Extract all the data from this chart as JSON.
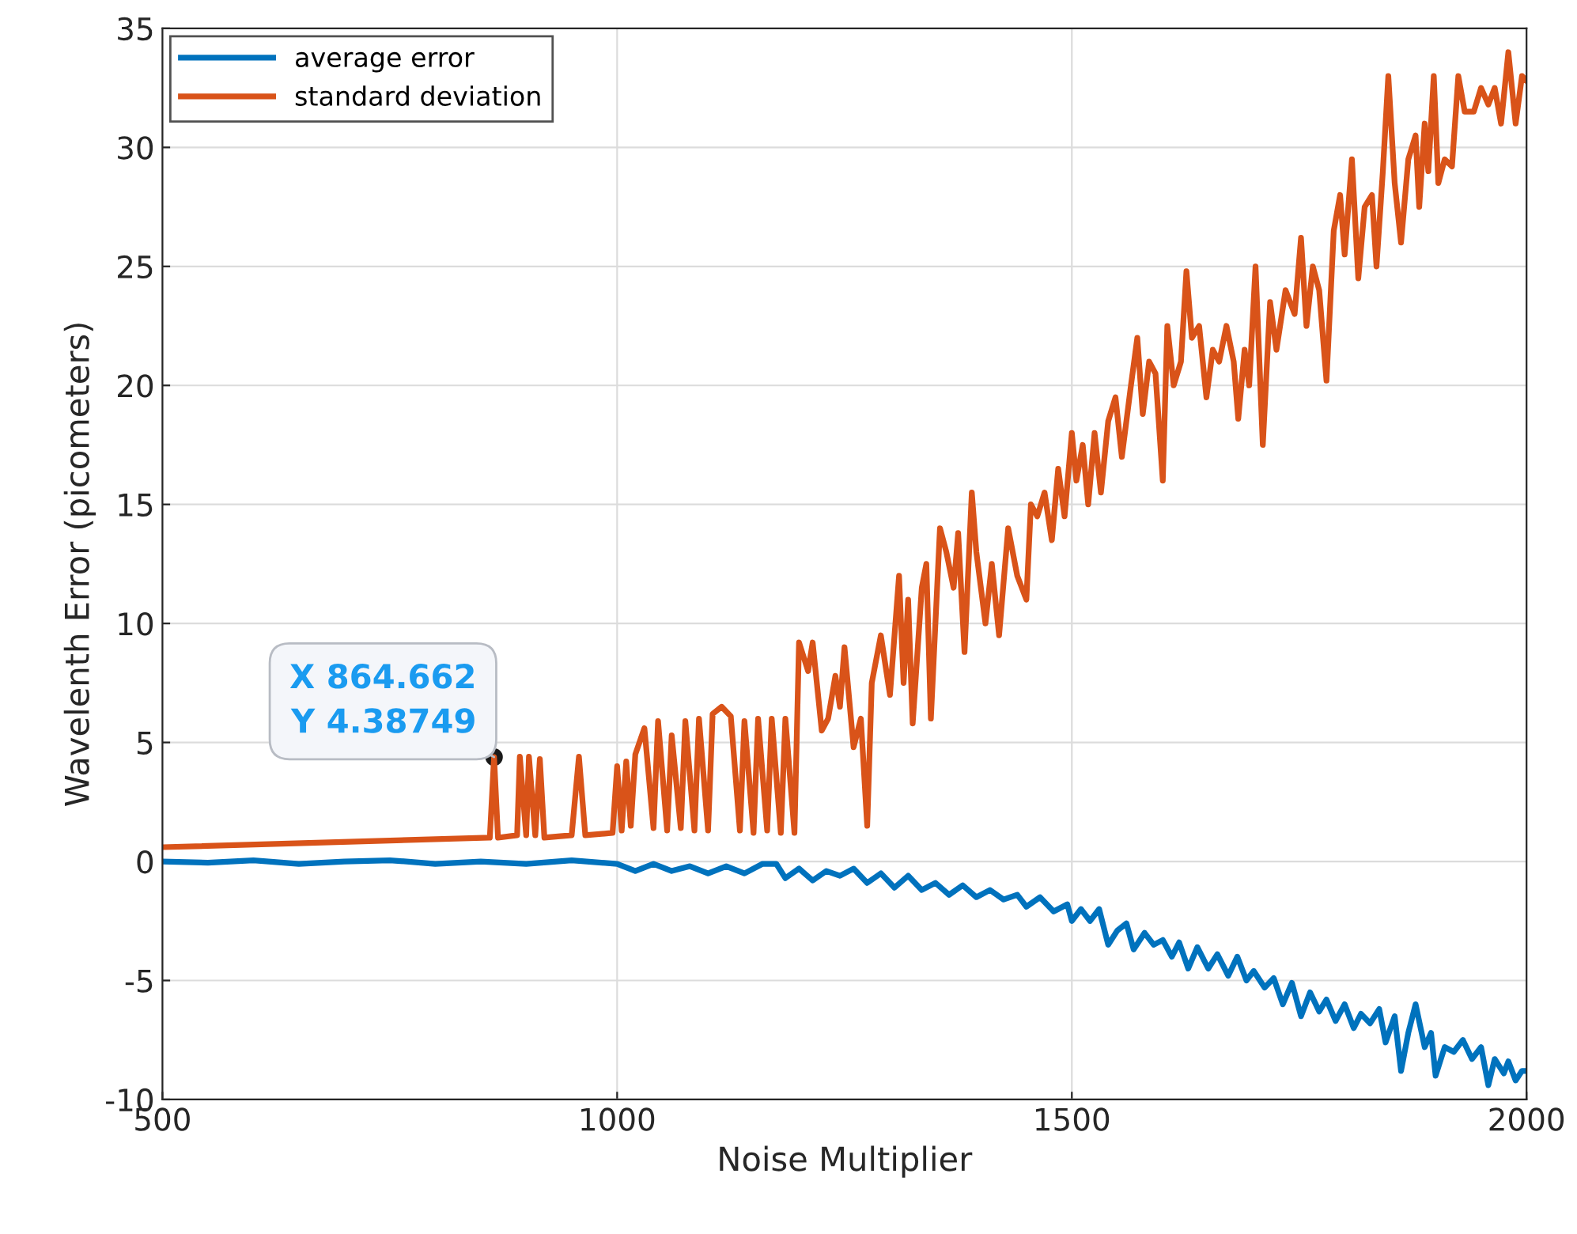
{
  "chart_data": {
    "type": "line",
    "xlabel": "Noise Multiplier",
    "ylabel": "Wavelenth Error (picometers)",
    "xlim": [
      500,
      2000
    ],
    "ylim": [
      -10,
      35
    ],
    "xticks": [
      500,
      1000,
      1500,
      2000
    ],
    "yticks": [
      -10,
      -5,
      0,
      5,
      10,
      15,
      20,
      25,
      30,
      35
    ],
    "grid": true,
    "legend": "top left",
    "line_style": "solid",
    "marker": "none",
    "annotations": [
      {
        "text": "X 864.662\nY 4.38749",
        "x": 864.662,
        "y": 4.38749
      }
    ],
    "series": [
      {
        "name": "average error",
        "color": "#0072bd",
        "x": [
          500,
          550,
          600,
          650,
          700,
          750,
          800,
          850,
          900,
          950,
          1000,
          1020,
          1040,
          1060,
          1080,
          1100,
          1120,
          1140,
          1160,
          1175,
          1185,
          1200,
          1215,
          1230,
          1245,
          1260,
          1275,
          1290,
          1305,
          1320,
          1335,
          1350,
          1365,
          1380,
          1395,
          1410,
          1425,
          1440,
          1450,
          1465,
          1480,
          1495,
          1500,
          1510,
          1520,
          1530,
          1540,
          1550,
          1560,
          1568,
          1580,
          1590,
          1600,
          1610,
          1618,
          1628,
          1638,
          1650,
          1660,
          1672,
          1682,
          1692,
          1700,
          1712,
          1722,
          1732,
          1742,
          1752,
          1762,
          1772,
          1780,
          1790,
          1800,
          1810,
          1818,
          1828,
          1838,
          1845,
          1855,
          1862,
          1870,
          1878,
          1888,
          1895,
          1900,
          1910,
          1920,
          1930,
          1940,
          1950,
          1958,
          1965,
          1975,
          1980,
          1988,
          1995,
          2000
        ],
        "values": [
          0.0,
          -0.05,
          0.05,
          -0.1,
          0.0,
          0.05,
          -0.1,
          0.0,
          -0.1,
          0.05,
          -0.1,
          -0.4,
          -0.1,
          -0.4,
          -0.2,
          -0.5,
          -0.2,
          -0.5,
          -0.1,
          -0.1,
          -0.7,
          -0.3,
          -0.8,
          -0.4,
          -0.6,
          -0.3,
          -0.9,
          -0.5,
          -1.1,
          -0.6,
          -1.2,
          -0.9,
          -1.4,
          -1.0,
          -1.5,
          -1.2,
          -1.6,
          -1.4,
          -1.9,
          -1.5,
          -2.1,
          -1.8,
          -2.5,
          -2.0,
          -2.5,
          -2.0,
          -3.5,
          -2.9,
          -2.6,
          -3.7,
          -3.0,
          -3.5,
          -3.3,
          -4.0,
          -3.4,
          -4.5,
          -3.6,
          -4.5,
          -3.9,
          -4.8,
          -4.0,
          -5.0,
          -4.6,
          -5.3,
          -4.9,
          -6.0,
          -5.1,
          -6.5,
          -5.5,
          -6.3,
          -5.8,
          -6.7,
          -6.0,
          -7.0,
          -6.4,
          -6.8,
          -6.2,
          -7.6,
          -6.5,
          -8.8,
          -7.2,
          -6.0,
          -7.8,
          -7.2,
          -9.0,
          -7.8,
          -8.0,
          -7.5,
          -8.3,
          -7.8,
          -9.4,
          -8.3,
          -8.9,
          -8.4,
          -9.2,
          -8.8,
          -8.8
        ]
      },
      {
        "name": "standard deviation",
        "color": "#d95319",
        "x": [
          500,
          860,
          864.662,
          869,
          890,
          893,
          900,
          903,
          910,
          915,
          920,
          950,
          958,
          965,
          995,
          1000,
          1005,
          1010,
          1015,
          1020,
          1030,
          1040,
          1045,
          1055,
          1060,
          1070,
          1075,
          1085,
          1090,
          1100,
          1105,
          1115,
          1125,
          1135,
          1140,
          1150,
          1155,
          1165,
          1170,
          1180,
          1185,
          1195,
          1200,
          1210,
          1215,
          1225,
          1232,
          1240,
          1245,
          1250,
          1260,
          1268,
          1275,
          1280,
          1290,
          1300,
          1310,
          1315,
          1320,
          1325,
          1335,
          1340,
          1345,
          1355,
          1362,
          1370,
          1375,
          1382,
          1390,
          1395,
          1405,
          1412,
          1420,
          1430,
          1440,
          1450,
          1455,
          1462,
          1470,
          1478,
          1485,
          1492,
          1500,
          1505,
          1512,
          1518,
          1525,
          1532,
          1540,
          1548,
          1555,
          1565,
          1572,
          1578,
          1585,
          1592,
          1600,
          1605,
          1612,
          1620,
          1626,
          1632,
          1640,
          1648,
          1655,
          1662,
          1670,
          1678,
          1683,
          1690,
          1695,
          1702,
          1710,
          1718,
          1725,
          1735,
          1745,
          1752,
          1758,
          1765,
          1772,
          1780,
          1788,
          1795,
          1800,
          1808,
          1815,
          1822,
          1830,
          1835,
          1842,
          1848,
          1855,
          1862,
          1870,
          1878,
          1882,
          1888,
          1892,
          1898,
          1903,
          1910,
          1918,
          1925,
          1932,
          1942,
          1950,
          1958,
          1965,
          1972,
          1980,
          1988,
          1995,
          2000
        ],
        "values": [
          0.6,
          1.0,
          4.38749,
          1.0,
          1.1,
          4.4,
          1.1,
          4.4,
          1.1,
          4.3,
          1.0,
          1.1,
          4.4,
          1.1,
          1.2,
          4.0,
          1.3,
          4.2,
          1.5,
          4.5,
          5.6,
          1.4,
          5.9,
          1.3,
          5.3,
          1.4,
          5.9,
          1.3,
          6.0,
          1.3,
          6.2,
          6.5,
          6.1,
          1.3,
          5.9,
          1.2,
          6.0,
          1.3,
          6.0,
          1.2,
          6.0,
          1.2,
          9.2,
          8.0,
          9.2,
          5.5,
          6.0,
          7.8,
          6.5,
          9.0,
          4.8,
          6.0,
          1.5,
          7.5,
          9.5,
          7.0,
          12.0,
          7.5,
          11.0,
          5.8,
          11.5,
          12.5,
          6.0,
          14.0,
          13.0,
          11.5,
          13.8,
          8.8,
          15.5,
          13.0,
          10.0,
          12.5,
          9.5,
          14.0,
          12.0,
          11.0,
          15.0,
          14.5,
          15.5,
          13.5,
          16.5,
          14.5,
          18.0,
          16.0,
          17.5,
          15.0,
          18.0,
          15.5,
          18.5,
          19.5,
          17.0,
          20.0,
          22.0,
          18.8,
          21.0,
          20.5,
          16.0,
          22.5,
          20.0,
          21.0,
          24.8,
          22.0,
          22.5,
          19.5,
          21.5,
          21.0,
          22.5,
          21.0,
          18.6,
          21.5,
          20.0,
          25.0,
          17.5,
          23.5,
          21.5,
          24.0,
          23.0,
          26.2,
          22.5,
          25.0,
          24.0,
          20.2,
          26.5,
          28.0,
          25.5,
          29.5,
          24.5,
          27.5,
          28.0,
          25.0,
          29.0,
          33.0,
          28.5,
          26.0,
          29.5,
          30.5,
          27.5,
          31.0,
          29.0,
          33.0,
          28.5,
          29.5,
          29.2,
          33.0,
          31.5,
          31.5,
          32.5,
          31.8,
          32.5,
          31.0,
          34.0,
          31.0,
          33.0,
          32.8
        ]
      }
    ]
  }
}
